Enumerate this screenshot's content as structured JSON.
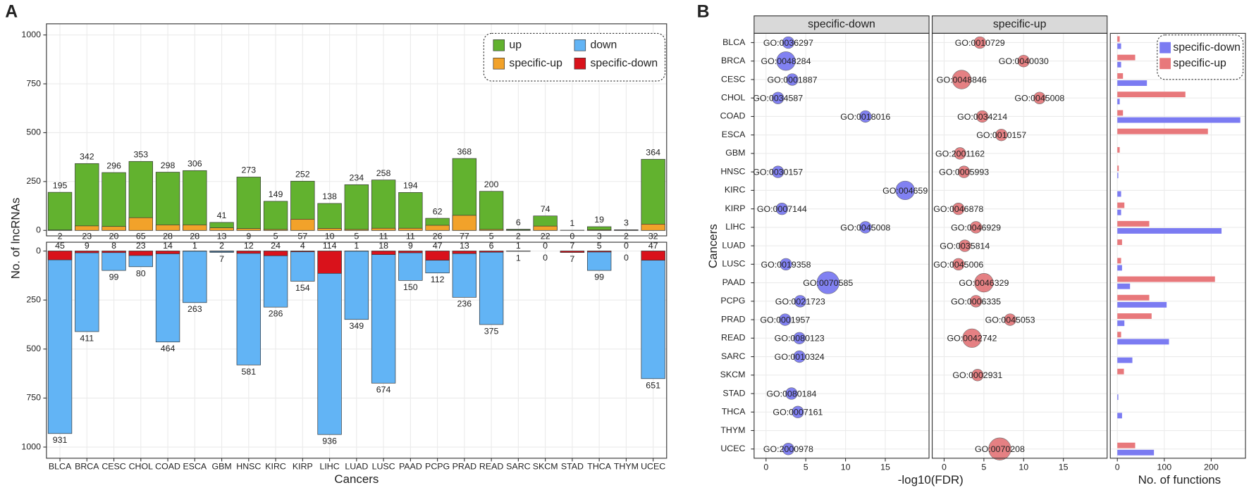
{
  "chart_data": [
    {
      "type": "bar",
      "panel_label": "A",
      "xlabel": "Cancers",
      "ylabel": "No. of lncRNAs",
      "categories": [
        "BLCA",
        "BRCA",
        "CESC",
        "CHOL",
        "COAD",
        "ESCA",
        "GBM",
        "HNSC",
        "KIRC",
        "KIRP",
        "LIHC",
        "LUAD",
        "LUSC",
        "PAAD",
        "PCPG",
        "PRAD",
        "READ",
        "SARC",
        "SKCM",
        "STAD",
        "THCA",
        "THYM",
        "UCEC"
      ],
      "series": [
        {
          "name": "up",
          "color": "#62b22f",
          "values": [
            195,
            342,
            296,
            353,
            298,
            306,
            41,
            273,
            149,
            252,
            138,
            234,
            258,
            194,
            62,
            368,
            200,
            6,
            74,
            1,
            19,
            3,
            364
          ]
        },
        {
          "name": "down",
          "color": "#62b4f5",
          "axis": "y2",
          "values": [
            931,
            411,
            99,
            80,
            464,
            263,
            7,
            581,
            286,
            154,
            936,
            349,
            674,
            150,
            112,
            236,
            375,
            1,
            0,
            7,
            99,
            0,
            651
          ]
        },
        {
          "name": "specific-up",
          "color": "#f2a22a",
          "values": [
            2,
            23,
            20,
            65,
            28,
            28,
            13,
            9,
            5,
            57,
            10,
            5,
            11,
            11,
            26,
            77,
            5,
            2,
            22,
            0,
            3,
            2,
            32
          ]
        },
        {
          "name": "specific-down",
          "color": "#d9121b",
          "axis": "y2",
          "values": [
            45,
            9,
            8,
            23,
            14,
            1,
            2,
            12,
            24,
            4,
            114,
            1,
            18,
            9,
            47,
            13,
            6,
            1,
            0,
            7,
            5,
            0,
            47
          ]
        }
      ],
      "ylim": [
        -28,
        1057
      ],
      "yticks": [
        0,
        250,
        500,
        750,
        1000
      ],
      "y2lim": [
        -45,
        1057
      ],
      "y2ticks": [
        0,
        250,
        500,
        750,
        1000
      ],
      "y2_reversed": true,
      "grid": true,
      "legend": "top right"
    },
    {
      "type": "dot",
      "panel_label": "B",
      "xlabel": "-log10(FDR)",
      "ylabel": "Cancers",
      "categories": [
        "BLCA",
        "BRCA",
        "CESC",
        "CHOL",
        "COAD",
        "ESCA",
        "GBM",
        "HNSC",
        "KIRC",
        "KIRP",
        "LIHC",
        "LUAD",
        "LUSC",
        "PAAD",
        "PCPG",
        "PRAD",
        "READ",
        "SARC",
        "SKCM",
        "STAD",
        "THCA",
        "THYM",
        "UCEC"
      ],
      "xlim": [
        -1.5,
        20.5
      ],
      "xticks": [
        0,
        5,
        10,
        15
      ],
      "grid": true,
      "facets": [
        {
          "title": "specific-down",
          "color": "#6b6bf0",
          "x": [
            2.8,
            2.5,
            3.3,
            1.5,
            12.5,
            null,
            null,
            1.5,
            17.5,
            2.0,
            12.5,
            null,
            2.5,
            7.8,
            4.3,
            2.4,
            4.2,
            4.2,
            null,
            3.2,
            4.0,
            null,
            2.8
          ],
          "sizes": [
            2,
            4,
            2,
            2,
            2,
            null,
            null,
            2,
            4,
            2,
            2,
            null,
            2,
            5,
            2,
            2,
            2,
            2,
            null,
            2,
            2,
            null,
            2
          ],
          "labels": [
            "GO:0036297",
            "GO:0048284",
            "GO:0001887",
            "GO:0034587",
            "GO:0018016",
            null,
            null,
            "GO:0030157",
            "GO:004659",
            "GO:0007144",
            "GO:0045008",
            null,
            "GO:0019358",
            "GO:0070585",
            "GO:0021723",
            "GO:0001957",
            "GO:0080123",
            "GO:0010324",
            null,
            "GO:0080184",
            "GO:0007161",
            null,
            "GO:2000978"
          ]
        },
        {
          "title": "specific-up",
          "color": "#e06a6d",
          "x": [
            4.5,
            10,
            2.2,
            12,
            4.8,
            7.2,
            2.0,
            2.5,
            null,
            1.8,
            4.0,
            2.6,
            1.8,
            5,
            4,
            8.3,
            3.5,
            null,
            4.2,
            null,
            null,
            null,
            7
          ],
          "sizes": [
            2,
            2,
            4,
            2,
            2,
            2,
            2,
            2,
            null,
            2,
            2,
            2,
            2,
            4,
            2,
            2,
            4,
            null,
            2,
            null,
            null,
            null,
            5
          ],
          "labels": [
            "GO:0010729",
            "GO:0040030",
            "GO:0048846",
            "GO:0045008",
            "GO:0034214",
            "GO:0010157",
            "GO:2001162",
            "GO:0005993",
            null,
            "GO:0046878",
            "GO:0046929",
            "GO:0035814",
            "GO:0045006",
            "GO:0046329",
            "GO:0006335",
            "GO:0045053",
            "GO:0042742",
            null,
            "GO:0002931",
            null,
            null,
            null,
            "GO:0070208"
          ]
        }
      ]
    },
    {
      "type": "barh",
      "xlabel": "No. of functions",
      "xlim": [
        -15,
        273
      ],
      "xticks": [
        0,
        100,
        200
      ],
      "grid": true,
      "legend": "top right",
      "series": [
        {
          "name": "specific-down",
          "color": "#7b7bf2",
          "values": [
            8,
            8,
            63,
            5,
            262,
            0,
            0,
            2,
            8,
            8,
            222,
            0,
            10,
            27,
            105,
            15,
            110,
            32,
            0,
            2,
            10,
            0,
            78
          ]
        },
        {
          "name": "specific-up",
          "color": "#e8787b",
          "values": [
            5,
            38,
            12,
            145,
            12,
            193,
            5,
            3,
            0,
            15,
            68,
            10,
            8,
            208,
            68,
            73,
            8,
            0,
            14,
            0,
            0,
            0,
            38
          ]
        }
      ]
    }
  ]
}
